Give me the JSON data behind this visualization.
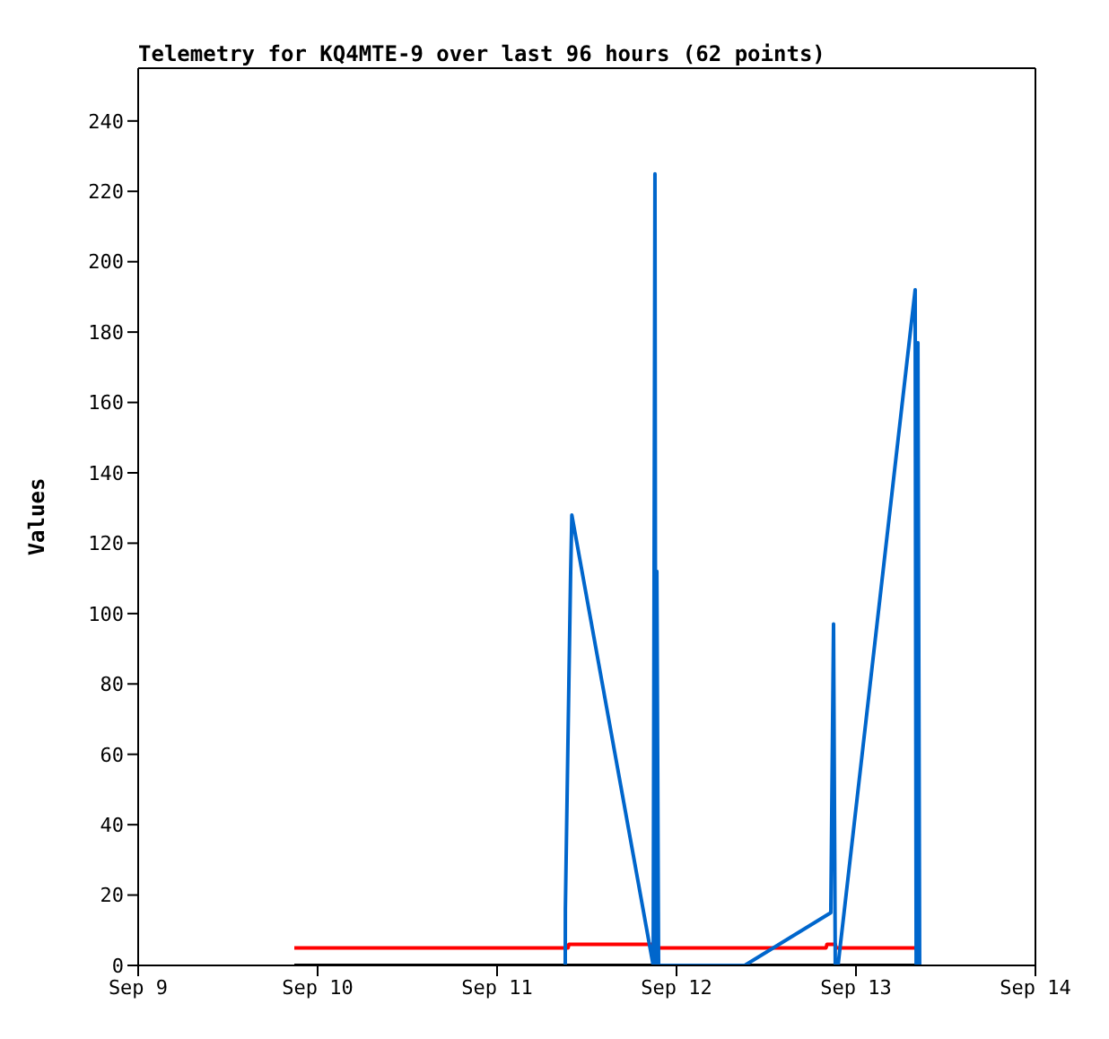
{
  "chart_data": {
    "type": "line",
    "title": "Telemetry for KQ4MTE-9 over last 96 hours (62 points)",
    "ylabel": "Values",
    "xlim": [
      "--09-09",
      "--09-14"
    ],
    "xticks": [
      {
        "value": "--09-09",
        "label": "Sep 9"
      },
      {
        "value": "--09-10",
        "label": "Sep 10"
      },
      {
        "value": "--09-11",
        "label": "Sep 11"
      },
      {
        "value": "--09-12",
        "label": "Sep 12"
      },
      {
        "value": "--09-13",
        "label": "Sep 13"
      },
      {
        "value": "--09-14",
        "label": "Sep 14"
      }
    ],
    "ylim": [
      0,
      255
    ],
    "yticks": [
      0,
      20,
      40,
      60,
      80,
      100,
      120,
      140,
      160,
      180,
      200,
      220,
      240
    ],
    "marker": "none",
    "line_style": "solid",
    "series": [
      {
        "color": "#000000",
        "x": [
          "--09-09T20:53",
          "--09-13T08:10"
        ],
        "values": [
          0,
          0
        ]
      },
      {
        "color": "#ff0000",
        "x": [
          "--09-09T20:53",
          "--09-11T09:30",
          "--09-11T09:36",
          "--09-11T20:53",
          "--09-11T21:00",
          "--09-12T20:00",
          "--09-12T20:07",
          "--09-12T21:14",
          "--09-12T21:20",
          "--09-13T08:10"
        ],
        "values": [
          5,
          5,
          6,
          6,
          5,
          5,
          6,
          6,
          5,
          5
        ]
      },
      {
        "color": "#0066cc",
        "x": [
          "--09-11T09:07",
          "--09-11T09:08",
          "--09-11T09:22",
          "--09-11T09:36",
          "--09-11T09:50",
          "--09-11T10:00",
          "--09-11T20:53",
          "--09-11T21:07",
          "--09-11T21:14",
          "--09-11T21:22",
          "--09-11T21:36",
          "--09-12T09:07",
          "--09-12T20:38",
          "--09-12T21:00",
          "--09-12T21:14",
          "--09-12T21:36",
          "--09-13T07:55",
          "--09-13T08:03",
          "--09-13T08:17",
          "--09-13T08:31"
        ],
        "values": [
          0,
          16,
          48,
          80,
          111,
          128,
          0,
          225,
          0,
          112,
          0,
          0,
          15,
          97,
          0,
          0,
          192,
          0,
          177,
          0
        ]
      }
    ]
  }
}
